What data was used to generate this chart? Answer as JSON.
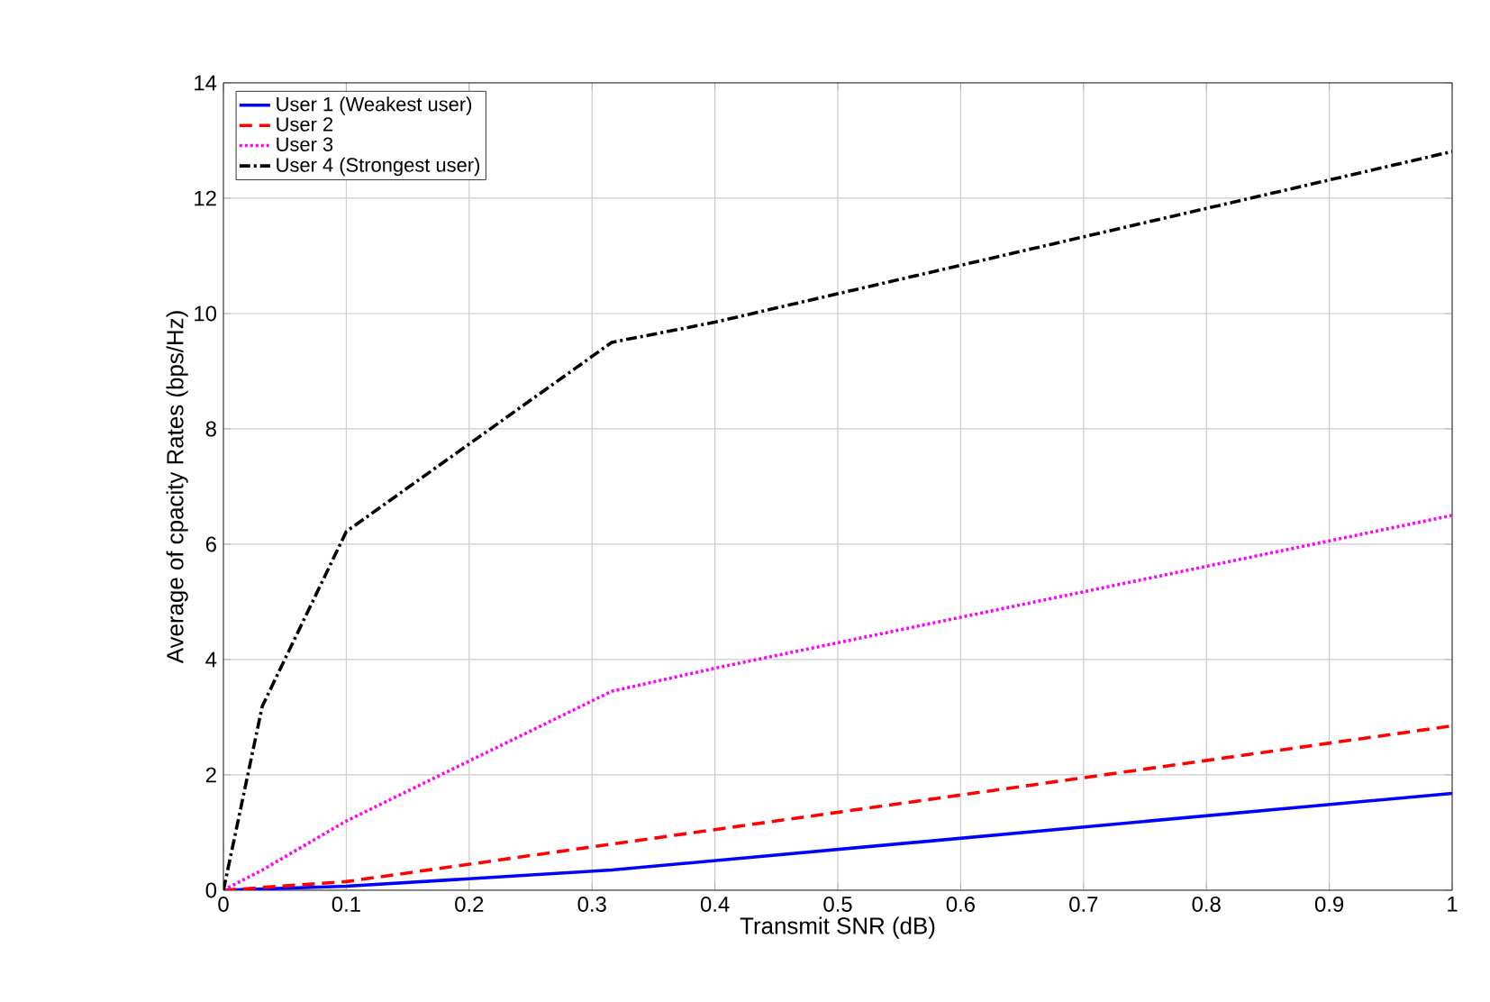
{
  "chart_data": {
    "type": "line",
    "xlabel": "Transmit SNR (dB)",
    "ylabel": "Average of cpacity Rates (bps/Hz)",
    "xlim": [
      0,
      1
    ],
    "ylim": [
      0,
      14
    ],
    "xticks": [
      0,
      0.1,
      0.2,
      0.3,
      0.4,
      0.5,
      0.6,
      0.7,
      0.8,
      0.9,
      1
    ],
    "yticks": [
      0,
      2,
      4,
      6,
      8,
      10,
      12,
      14
    ],
    "grid": true,
    "legend": "top left",
    "series": [
      {
        "name": "User 1 (Weakest user)",
        "color": "#0000ff",
        "line_style": "solid",
        "x": [
          0,
          0.1,
          0.316,
          1
        ],
        "values": [
          0,
          0.07,
          0.35,
          1.68
        ]
      },
      {
        "name": "User 2",
        "color": "#ff0000",
        "line_style": "dashed",
        "x": [
          0,
          0.1,
          0.316,
          1
        ],
        "values": [
          0,
          0.15,
          0.8,
          2.85
        ]
      },
      {
        "name": "User 3",
        "color": "#ff00ff",
        "line_style": "dotted",
        "x": [
          0,
          0.0316,
          0.1,
          0.316,
          0.4,
          1
        ],
        "values": [
          0,
          0.35,
          1.2,
          3.45,
          3.85,
          6.5
        ]
      },
      {
        "name": "User 4 (Strongest user)",
        "color": "#000000",
        "line_style": "dashdot",
        "x": [
          0,
          0.0316,
          0.1,
          0.316,
          0.4,
          1
        ],
        "values": [
          0,
          3.19,
          6.22,
          9.5,
          9.85,
          12.81
        ]
      }
    ]
  }
}
